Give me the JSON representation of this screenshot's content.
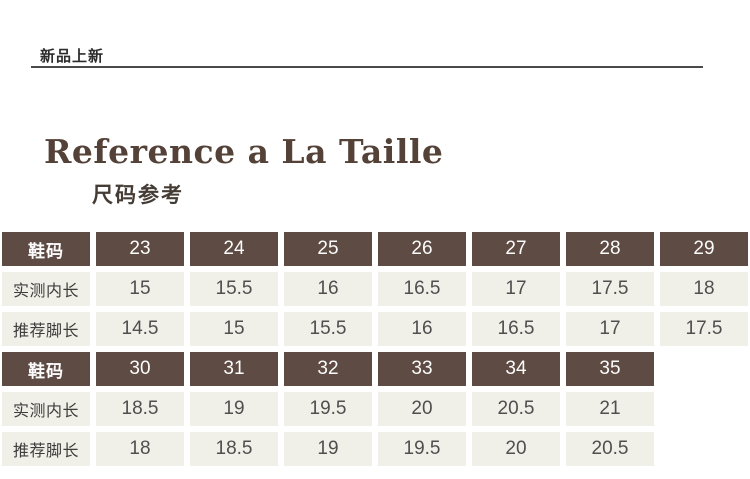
{
  "banner": {
    "label": "新品上新"
  },
  "title": {
    "en": "Reference a La Taille",
    "zh": "尺码参考"
  },
  "colors": {
    "header_bg": "#5e4b43",
    "cell_bg": "#f0efe8",
    "title_text": "#544238",
    "cell_text": "#4f4f4f",
    "header_text": "#fcfcfc",
    "divider": "#4a4a4a"
  },
  "table": {
    "sections": [
      {
        "header": {
          "label": "鞋码",
          "sizes": [
            "23",
            "24",
            "25",
            "26",
            "27",
            "28",
            "29"
          ]
        },
        "rows": [
          {
            "label": "实测内长",
            "values": [
              "15",
              "15.5",
              "16",
              "16.5",
              "17",
              "17.5",
              "18"
            ]
          },
          {
            "label": "推荐脚长",
            "values": [
              "14.5",
              "15",
              "15.5",
              "16",
              "16.5",
              "17",
              "17.5"
            ]
          }
        ]
      },
      {
        "header": {
          "label": "鞋码",
          "sizes": [
            "30",
            "31",
            "32",
            "33",
            "34",
            "35"
          ]
        },
        "rows": [
          {
            "label": "实测内长",
            "values": [
              "18.5",
              "19",
              "19.5",
              "20",
              "20.5",
              "21"
            ]
          },
          {
            "label": "推荐脚长",
            "values": [
              "18",
              "18.5",
              "19",
              "19.5",
              "20",
              "20.5"
            ]
          }
        ]
      }
    ]
  }
}
